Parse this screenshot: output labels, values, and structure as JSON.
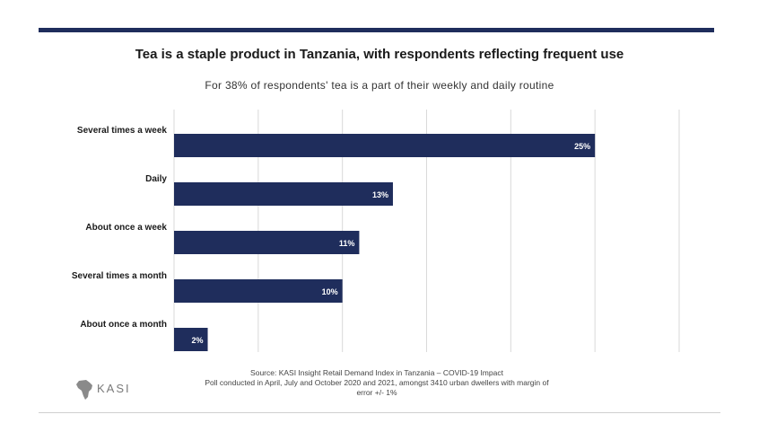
{
  "header": {
    "title": "Tea is a staple product in Tanzania, with respondents reflecting frequent use",
    "subtitle": "For 38% of respondents' tea is a part of their weekly and daily routine"
  },
  "chart_data": {
    "type": "bar",
    "orientation": "horizontal",
    "categories": [
      "Several times a week",
      "Daily",
      "About once a week",
      "Several times a month",
      "About once a month"
    ],
    "values": [
      25,
      13,
      11,
      10,
      2
    ],
    "value_labels": [
      "25%",
      "13%",
      "11%",
      "10%",
      "2%"
    ],
    "xlim": [
      0,
      30
    ],
    "grid": true,
    "bar_color": "#1f2d5c"
  },
  "footer": {
    "source_line1": "Source: KASI Insight Retail Demand Index in Tanzania – COVID-19 Impact",
    "source_line2": "Poll conducted in April, July and October 2020 and 2021, amongst 3410 urban dwellers with  margin of",
    "source_line3": "error +/- 1%",
    "logo_text": "KASI"
  }
}
